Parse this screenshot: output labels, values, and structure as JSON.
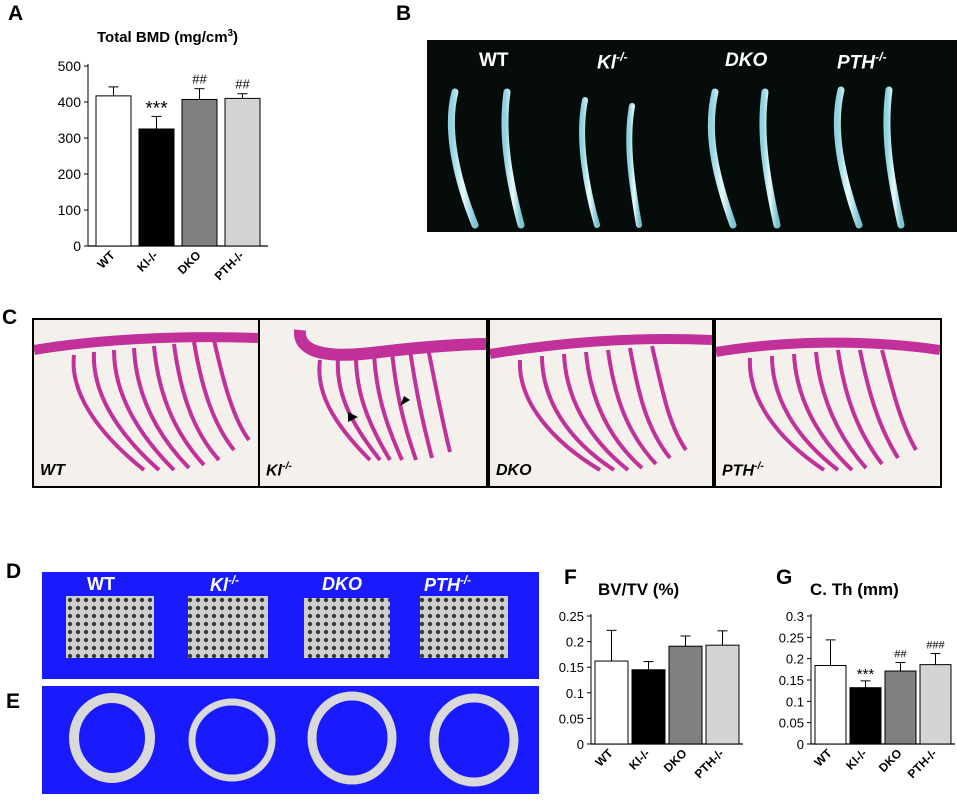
{
  "panels": {
    "A": "A",
    "B": "B",
    "C": "C",
    "D": "D",
    "E": "E",
    "F": "F",
    "G": "G"
  },
  "xray_labels": [
    "WT",
    "Kl",
    "DKO",
    "PTH"
  ],
  "xray_sups": [
    "",
    "-/-",
    "",
    "-/-"
  ],
  "stain_labels": [
    "WT",
    "Kl",
    "DKO",
    "PTH"
  ],
  "stain_sups": [
    "",
    "-/-",
    "",
    "-/-"
  ],
  "ct_labels": [
    "WT",
    "Kl",
    "DKO",
    "PTH"
  ],
  "ct_sups": [
    "",
    "-/-",
    "",
    "-/-"
  ],
  "colors": {
    "wt": "#ffffff",
    "kl": "#000000",
    "dko": "#808080",
    "pth": "#d4d4d4",
    "ct_background": "#1a1aff",
    "stain_magenta": "#c2309a",
    "stain_blue": "#3d3fb0",
    "cartilage": "#3fb7d0"
  },
  "chart_data": [
    {
      "type": "bar",
      "title_main": "Total BMD (mg/cm",
      "title_sup": "3",
      "title_end": ")",
      "categories": [
        "WT",
        "Kl-/-",
        "DKO",
        "PTH-/-"
      ],
      "values": [
        417,
        325,
        407,
        410
      ],
      "errors": [
        25,
        35,
        30,
        13
      ],
      "annotations": [
        "",
        "***",
        "##",
        "##"
      ],
      "ylim": [
        0,
        500
      ],
      "yticks": [
        "0",
        "100",
        "200",
        "300",
        "400",
        "500"
      ],
      "xlabel": "",
      "ylabel": ""
    },
    {
      "type": "bar",
      "title": "BV/TV (%)",
      "categories": [
        "WT",
        "Kl-/-",
        "DKO",
        "PTH-/-"
      ],
      "values": [
        0.162,
        0.145,
        0.191,
        0.193
      ],
      "errors": [
        0.06,
        0.016,
        0.02,
        0.028
      ],
      "annotations": [
        "",
        "",
        "",
        ""
      ],
      "ylim": [
        0,
        0.25
      ],
      "yticks": [
        "0",
        "0.05",
        "0.1",
        "0.15",
        "0.2",
        "0.25"
      ],
      "xlabel": "",
      "ylabel": ""
    },
    {
      "type": "bar",
      "title": "C. Th (mm)",
      "categories": [
        "WT",
        "Kl-/-",
        "DKO",
        "PTH-/-"
      ],
      "values": [
        0.184,
        0.132,
        0.171,
        0.186
      ],
      "errors": [
        0.06,
        0.016,
        0.02,
        0.026
      ],
      "annotations": [
        "",
        "***",
        "##",
        "###"
      ],
      "ylim": [
        0,
        0.3
      ],
      "yticks": [
        "0",
        "0.05",
        "0.1",
        "0.15",
        "0.2",
        "0.25",
        "0.3"
      ],
      "xlabel": "",
      "ylabel": ""
    }
  ]
}
